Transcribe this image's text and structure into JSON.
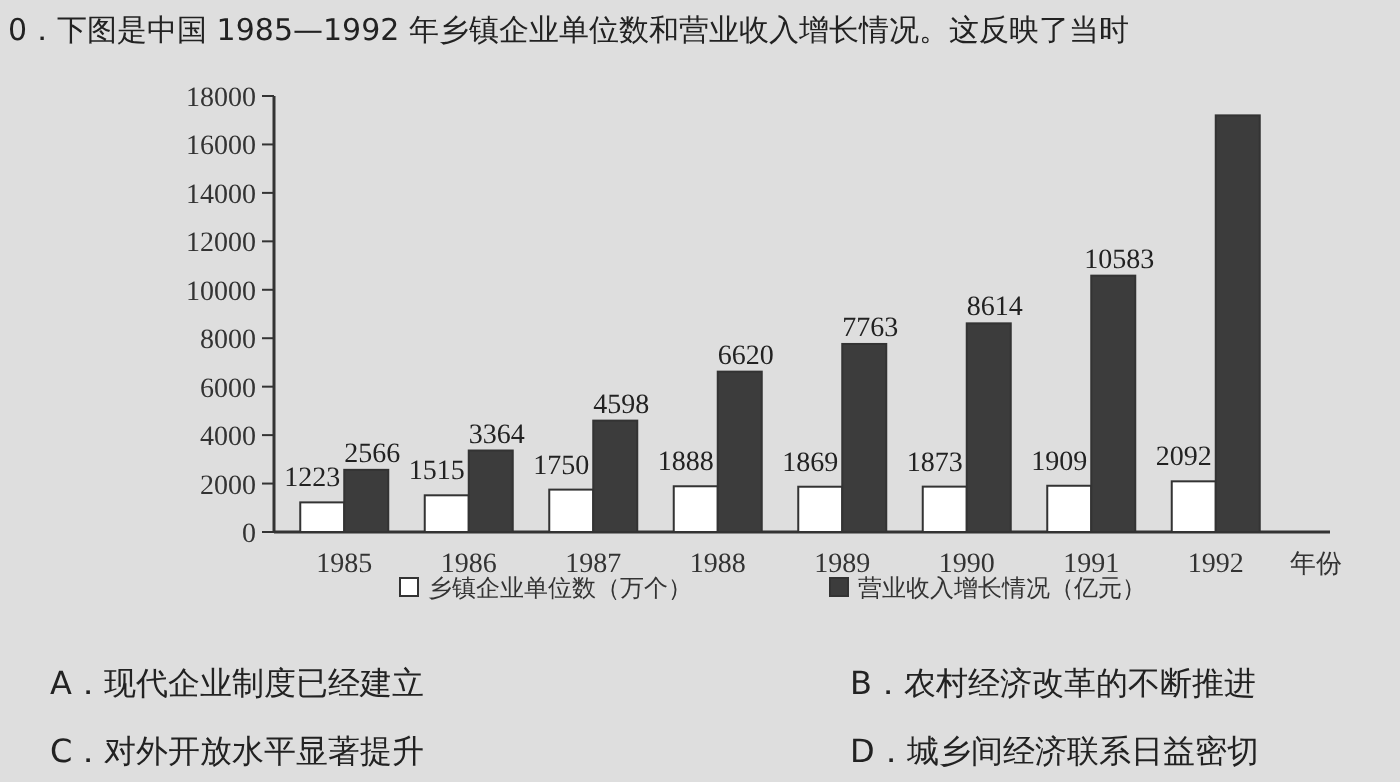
{
  "chart_data": {
    "type": "bar",
    "title": "0．下图是中国 1985—1992 年乡镇企业单位数和营业收入增长情况。这反映了当时",
    "xlabel": "年份",
    "categories": [
      "1985",
      "1986",
      "1987",
      "1988",
      "1989",
      "1990",
      "1991",
      "1992"
    ],
    "series": [
      {
        "name": "乡镇企业单位数（万个）",
        "color": "#ffffff",
        "values": [
          1223,
          1515,
          1750,
          1888,
          1869,
          1873,
          1909,
          2092
        ],
        "value_labels": [
          "1223",
          "1515",
          "1750",
          "1888",
          "1869",
          "1873",
          "1909",
          "2092"
        ]
      },
      {
        "name": "营业收入增长情况（亿元）",
        "color": "#3c3c3c",
        "values": [
          2566,
          3364,
          4598,
          6620,
          7763,
          8614,
          10583,
          17200
        ],
        "value_labels": [
          "2566",
          "3364",
          "4598",
          "6620",
          "7763",
          "8614",
          "10583",
          null
        ]
      }
    ],
    "ylim": [
      0,
      18000
    ],
    "yticks": [
      0,
      2000,
      4000,
      6000,
      8000,
      10000,
      12000,
      14000,
      16000,
      18000
    ],
    "legend": "bottom",
    "annotations": [
      "A．现代企业制度已经建立",
      "B．农村经济改革的不断推进",
      "C．对外开放水平显著提升",
      "D．城乡间经济联系日益密切"
    ]
  }
}
